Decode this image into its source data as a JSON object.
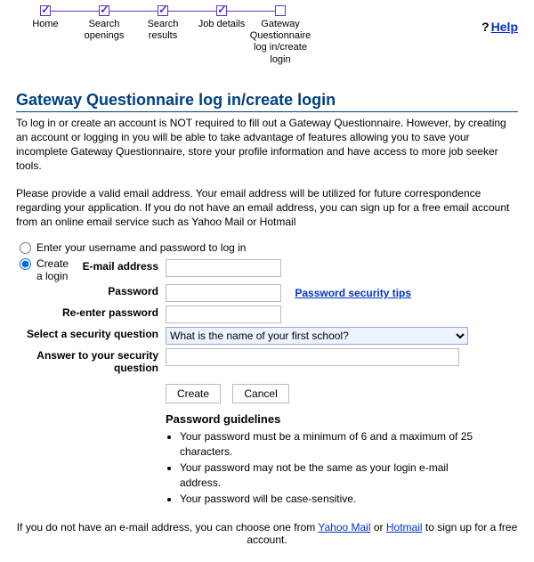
{
  "steps": [
    {
      "label": "Home",
      "checked": true
    },
    {
      "label": "Search openings",
      "checked": true
    },
    {
      "label": "Search results",
      "checked": true
    },
    {
      "label": "Job details",
      "checked": true
    },
    {
      "label": "Gateway Questionnaire log in/create login",
      "checked": false
    }
  ],
  "help": {
    "q": "?",
    "label": "Help"
  },
  "title": "Gateway Questionnaire log in/create login",
  "intro": {
    "p1": "To log in or create an account is NOT required to fill out a Gateway Questionnaire. However, by creating an account or logging in you will be able to take advantage of features allowing you to save your incomplete Gateway Questionnaire, store your profile information and have access to more job seeker tools.",
    "p2": "Please provide a valid email address. Your email address will be utilized for future correspondence regarding your application. If you do not have an email address, you can sign up for a free email account from an online email service such as Yahoo Mail or Hotmail"
  },
  "options": {
    "opt1": "Enter your username and password to log in",
    "opt2": "Create a login"
  },
  "fields": {
    "email_label": "E-mail address",
    "password_label": "Password",
    "repassword_label": "Re-enter password",
    "question_label": "Select a security question",
    "answer_label": "Answer to your security question",
    "question_value": "What is the name of your first school?",
    "pw_tips": "Password security tips"
  },
  "buttons": {
    "create": "Create",
    "cancel": "Cancel"
  },
  "guidelines": {
    "heading": "Password guidelines",
    "items": [
      "Your password must be a minimum of 6 and a maximum of 25 characters.",
      "Your password may not be the same as your login e-mail address.",
      "Your password will be case-sensitive."
    ]
  },
  "footer": {
    "pre": "If you do not have an e-mail address, you can choose one from ",
    "yahoo": "Yahoo Mail",
    "or": " or ",
    "hotmail": "Hotmail",
    "post": " to sign up for a free account."
  }
}
